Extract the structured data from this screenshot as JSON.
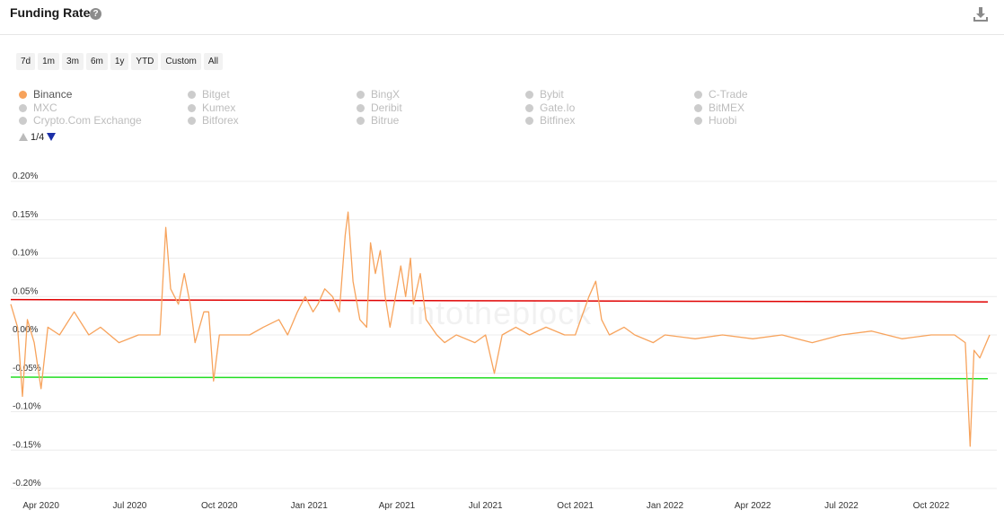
{
  "header": {
    "title": "Funding Rate",
    "help_symbol": "?"
  },
  "range_buttons": [
    "7d",
    "1m",
    "3m",
    "6m",
    "1y",
    "YTD",
    "Custom",
    "All"
  ],
  "legend": {
    "items": [
      {
        "label": "Binance",
        "active": true
      },
      {
        "label": "Bitget",
        "active": false
      },
      {
        "label": "BingX",
        "active": false
      },
      {
        "label": "Bybit",
        "active": false
      },
      {
        "label": "C-Trade",
        "active": false
      },
      {
        "label": "MXC",
        "active": false
      },
      {
        "label": "Kumex",
        "active": false
      },
      {
        "label": "Deribit",
        "active": false
      },
      {
        "label": "Gate.Io",
        "active": false
      },
      {
        "label": "BitMEX",
        "active": false
      },
      {
        "label": "Crypto.Com Exchange",
        "active": false
      },
      {
        "label": "Bitforex",
        "active": false
      },
      {
        "label": "Bitrue",
        "active": false
      },
      {
        "label": "Bitfinex",
        "active": false
      },
      {
        "label": "Huobi",
        "active": false
      }
    ],
    "pager": "1/4"
  },
  "watermark": "intotheblock",
  "colors": {
    "series": "#f7a35c",
    "upper_line": "#e00000",
    "lower_line": "#22dd22",
    "grid": "#ececec"
  },
  "chart_data": {
    "type": "line",
    "y_ticks": [
      "0.20%",
      "0.15%",
      "0.10%",
      "0.05%",
      "0.00%",
      "-0.05%",
      "-0.10%",
      "-0.15%",
      "-0.20%"
    ],
    "ylim": [
      -0.2,
      0.2
    ],
    "x_ticks": [
      "Apr 2020",
      "Jul 2020",
      "Oct 2020",
      "Jan 2021",
      "Apr 2021",
      "Jul 2021",
      "Oct 2021",
      "Jan 2022",
      "Apr 2022",
      "Jul 2022",
      "Oct 2022"
    ],
    "x_range": [
      "2020-03-01",
      "2022-11-30"
    ],
    "upper_line": {
      "start": 0.046,
      "end": 0.043
    },
    "lower_line": {
      "start": -0.055,
      "end": -0.057
    },
    "series": [
      {
        "name": "Binance",
        "points": [
          [
            "2020-03-01",
            0.04
          ],
          [
            "2020-03-08",
            0.01
          ],
          [
            "2020-03-13",
            -0.08
          ],
          [
            "2020-03-18",
            0.02
          ],
          [
            "2020-03-25",
            -0.01
          ],
          [
            "2020-04-01",
            -0.07
          ],
          [
            "2020-04-08",
            0.01
          ],
          [
            "2020-04-20",
            0.0
          ],
          [
            "2020-05-05",
            0.03
          ],
          [
            "2020-05-20",
            0.0
          ],
          [
            "2020-06-01",
            0.01
          ],
          [
            "2020-06-20",
            -0.01
          ],
          [
            "2020-07-10",
            0.0
          ],
          [
            "2020-07-25",
            0.0
          ],
          [
            "2020-08-01",
            0.0
          ],
          [
            "2020-08-07",
            0.14
          ],
          [
            "2020-08-12",
            0.06
          ],
          [
            "2020-08-20",
            0.04
          ],
          [
            "2020-08-26",
            0.08
          ],
          [
            "2020-09-01",
            0.04
          ],
          [
            "2020-09-06",
            -0.01
          ],
          [
            "2020-09-15",
            0.03
          ],
          [
            "2020-09-20",
            0.03
          ],
          [
            "2020-09-25",
            -0.06
          ],
          [
            "2020-10-01",
            0.0
          ],
          [
            "2020-10-15",
            0.0
          ],
          [
            "2020-11-01",
            0.0
          ],
          [
            "2020-11-15",
            0.01
          ],
          [
            "2020-12-01",
            0.02
          ],
          [
            "2020-12-10",
            0.0
          ],
          [
            "2020-12-20",
            0.03
          ],
          [
            "2020-12-28",
            0.05
          ],
          [
            "2021-01-05",
            0.03
          ],
          [
            "2021-01-10",
            0.04
          ],
          [
            "2021-01-17",
            0.06
          ],
          [
            "2021-01-25",
            0.05
          ],
          [
            "2021-02-01",
            0.03
          ],
          [
            "2021-02-07",
            0.13
          ],
          [
            "2021-02-10",
            0.16
          ],
          [
            "2021-02-15",
            0.07
          ],
          [
            "2021-02-22",
            0.02
          ],
          [
            "2021-03-01",
            0.01
          ],
          [
            "2021-03-05",
            0.12
          ],
          [
            "2021-03-10",
            0.08
          ],
          [
            "2021-03-15",
            0.11
          ],
          [
            "2021-03-20",
            0.05
          ],
          [
            "2021-03-25",
            0.01
          ],
          [
            "2021-04-01",
            0.06
          ],
          [
            "2021-04-05",
            0.09
          ],
          [
            "2021-04-10",
            0.05
          ],
          [
            "2021-04-15",
            0.1
          ],
          [
            "2021-04-18",
            0.04
          ],
          [
            "2021-04-25",
            0.08
          ],
          [
            "2021-05-01",
            0.02
          ],
          [
            "2021-05-12",
            0.0
          ],
          [
            "2021-05-20",
            -0.01
          ],
          [
            "2021-06-01",
            0.0
          ],
          [
            "2021-06-20",
            -0.01
          ],
          [
            "2021-07-01",
            0.0
          ],
          [
            "2021-07-10",
            -0.05
          ],
          [
            "2021-07-18",
            0.0
          ],
          [
            "2021-08-01",
            0.01
          ],
          [
            "2021-08-15",
            0.0
          ],
          [
            "2021-09-01",
            0.01
          ],
          [
            "2021-09-20",
            0.0
          ],
          [
            "2021-10-01",
            0.0
          ],
          [
            "2021-10-15",
            0.05
          ],
          [
            "2021-10-22",
            0.07
          ],
          [
            "2021-10-28",
            0.02
          ],
          [
            "2021-11-05",
            0.0
          ],
          [
            "2021-11-20",
            0.01
          ],
          [
            "2021-12-01",
            0.0
          ],
          [
            "2021-12-20",
            -0.01
          ],
          [
            "2022-01-01",
            0.0
          ],
          [
            "2022-02-01",
            -0.005
          ],
          [
            "2022-03-01",
            0.0
          ],
          [
            "2022-04-01",
            -0.005
          ],
          [
            "2022-05-01",
            0.0
          ],
          [
            "2022-06-01",
            -0.01
          ],
          [
            "2022-07-01",
            0.0
          ],
          [
            "2022-08-01",
            0.005
          ],
          [
            "2022-09-01",
            -0.005
          ],
          [
            "2022-10-01",
            0.0
          ],
          [
            "2022-10-25",
            0.0
          ],
          [
            "2022-11-05",
            -0.01
          ],
          [
            "2022-11-10",
            -0.145
          ],
          [
            "2022-11-14",
            -0.02
          ],
          [
            "2022-11-20",
            -0.03
          ],
          [
            "2022-11-30",
            0.0
          ]
        ]
      }
    ]
  }
}
